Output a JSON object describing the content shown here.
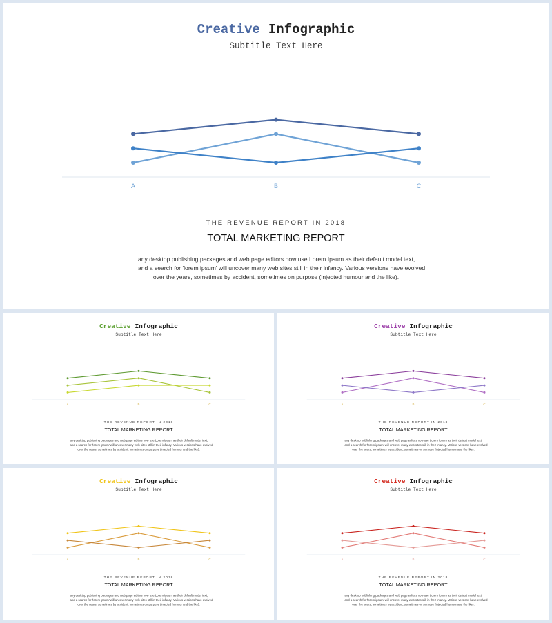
{
  "common": {
    "title_accent": "Creative",
    "title_rest": "Infographic",
    "subtitle": "Subtitle Text Here",
    "report_label": "THE REVENUE REPORT IN 2018",
    "report_title": "TOTAL MARKETING REPORT",
    "body_lines": [
      "any desktop publishing  packages and web page editors now use Lorem Ipsum as their default model text,",
      "and a search for 'lorem ipsum' will uncover many web sites still in their infancy. Various versions have evolved",
      "over the years, sometimes by accident, sometimes on purpose (injected humour and the like)."
    ]
  },
  "chart_data": [
    {
      "type": "line",
      "categories": [
        "A",
        "B",
        "C"
      ],
      "series": [
        {
          "values": [
            4,
            5,
            4
          ],
          "color": "#4a68a2"
        },
        {
          "values": [
            2,
            4,
            2
          ],
          "color": "#6fa3d6"
        },
        {
          "values": [
            3,
            2,
            3
          ],
          "color": "#3e81c7"
        }
      ],
      "ylim": [
        0,
        6
      ],
      "grid": false,
      "accent": "#4a68a2",
      "axis_color": "#6fa3d6"
    },
    {
      "type": "line",
      "categories": [
        "A",
        "B",
        "C"
      ],
      "series": [
        {
          "values": [
            4,
            5,
            4
          ],
          "color": "#5f9a32"
        },
        {
          "values": [
            3,
            4,
            2
          ],
          "color": "#a8c43a"
        },
        {
          "values": [
            2,
            3,
            3
          ],
          "color": "#c8d830"
        }
      ],
      "ylim": [
        0,
        6
      ],
      "grid": false,
      "accent": "#5a9e2e",
      "axis_color": "#d6b24a"
    },
    {
      "type": "line",
      "categories": [
        "A",
        "B",
        "C"
      ],
      "series": [
        {
          "values": [
            4,
            5,
            4
          ],
          "color": "#8b3f9c"
        },
        {
          "values": [
            2,
            4,
            2
          ],
          "color": "#b06fc4"
        },
        {
          "values": [
            3,
            2,
            3
          ],
          "color": "#8e78c8"
        }
      ],
      "ylim": [
        0,
        6
      ],
      "grid": false,
      "accent": "#9c3fa8",
      "axis_color": "#d6b24a"
    },
    {
      "type": "line",
      "categories": [
        "A",
        "B",
        "C"
      ],
      "series": [
        {
          "values": [
            4,
            5,
            4
          ],
          "color": "#f0c419"
        },
        {
          "values": [
            2,
            4,
            2
          ],
          "color": "#d99a3a"
        },
        {
          "values": [
            3,
            2,
            3
          ],
          "color": "#c7873a"
        }
      ],
      "ylim": [
        0,
        6
      ],
      "grid": false,
      "accent": "#f0c419",
      "axis_color": "#d6b24a"
    },
    {
      "type": "line",
      "categories": [
        "A",
        "B",
        "C"
      ],
      "series": [
        {
          "values": [
            4,
            5,
            4
          ],
          "color": "#c9241f"
        },
        {
          "values": [
            2,
            4,
            2
          ],
          "color": "#e27a76"
        },
        {
          "values": [
            3,
            2,
            3
          ],
          "color": "#e49a96"
        }
      ],
      "ylim": [
        0,
        6
      ],
      "grid": false,
      "accent": "#d32a1f",
      "axis_color": "#e2a09a"
    }
  ]
}
